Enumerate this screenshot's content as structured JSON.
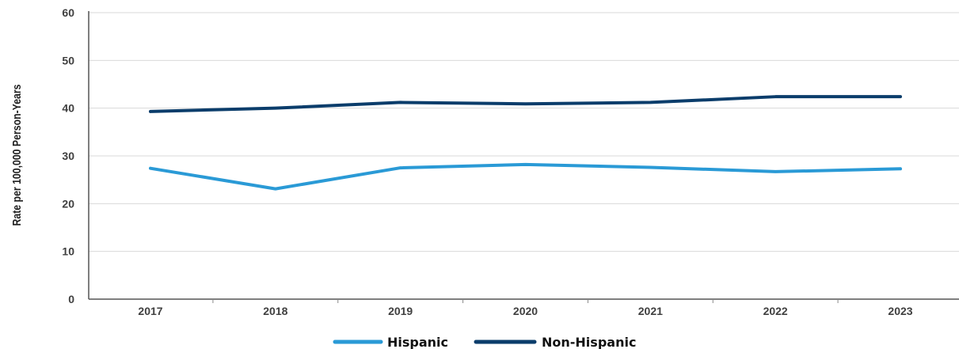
{
  "chart_data": {
    "type": "line",
    "ylabel": "Rate per 100,000 Person-Years",
    "xlabel": "",
    "title": "",
    "x": [
      "2017",
      "2018",
      "2019",
      "2020",
      "2021",
      "2022",
      "2023"
    ],
    "ylim": [
      0,
      60
    ],
    "yticks": [
      0,
      10,
      20,
      30,
      40,
      50,
      60
    ],
    "grid": true,
    "legend_position": "bottom-center",
    "series": [
      {
        "name": "Hispanic",
        "color": "#2a9ad6",
        "values": [
          27.4,
          23.1,
          27.5,
          28.2,
          27.6,
          26.7,
          27.3
        ]
      },
      {
        "name": "Non-Hispanic",
        "color": "#0b3d6b",
        "values": [
          39.3,
          40.0,
          41.2,
          40.9,
          41.2,
          42.4,
          42.4
        ]
      }
    ]
  }
}
